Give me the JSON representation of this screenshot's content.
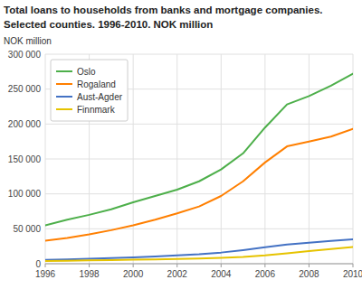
{
  "chart_data": {
    "type": "line",
    "title": "Total loans to households from banks and mortgage companies.",
    "subtitle": "Selected counties. 1996-2010. NOK million",
    "y_label": "NOK million",
    "x": [
      1996,
      1997,
      1998,
      1999,
      2000,
      2001,
      2002,
      2003,
      2004,
      2005,
      2006,
      2007,
      2008,
      2009,
      2010
    ],
    "series": [
      {
        "name": "Oslo",
        "color": "#4daf4a",
        "values": [
          55000,
          63000,
          70000,
          78000,
          88000,
          97000,
          106000,
          118000,
          135000,
          158000,
          195000,
          228000,
          240000,
          255000,
          272000
        ]
      },
      {
        "name": "Rogaland",
        "color": "#ff7f00",
        "values": [
          33000,
          37000,
          42000,
          48000,
          55000,
          63000,
          72000,
          82000,
          97000,
          118000,
          145000,
          168000,
          175000,
          182000,
          193000
        ]
      },
      {
        "name": "Aust-Agder",
        "color": "#4472c4",
        "values": [
          5500,
          6200,
          7000,
          8000,
          9200,
          10500,
          12000,
          13500,
          16000,
          19500,
          23500,
          27500,
          30000,
          32500,
          35000
        ]
      },
      {
        "name": "Finnmark",
        "color": "#e6c300",
        "values": [
          4000,
          4300,
          4700,
          5200,
          5700,
          6200,
          6800,
          7500,
          8500,
          9800,
          12000,
          15000,
          18000,
          21000,
          24000
        ]
      }
    ],
    "xlim": [
      1996,
      2010
    ],
    "xticks": [
      1996,
      1998,
      2000,
      2002,
      2004,
      2006,
      2008,
      2010
    ],
    "ylim": [
      0,
      300000
    ],
    "yticks": [
      0,
      {
        "value": 50000,
        "label": "50 000"
      },
      {
        "value": 100000,
        "label": "100 000"
      },
      {
        "value": 150000,
        "label": "150 000"
      },
      {
        "value": 200000,
        "label": "200 000"
      },
      {
        "value": 250000,
        "label": "250 000"
      },
      {
        "value": 300000,
        "label": "300 000"
      }
    ],
    "grid": true,
    "legend": "upper left"
  }
}
